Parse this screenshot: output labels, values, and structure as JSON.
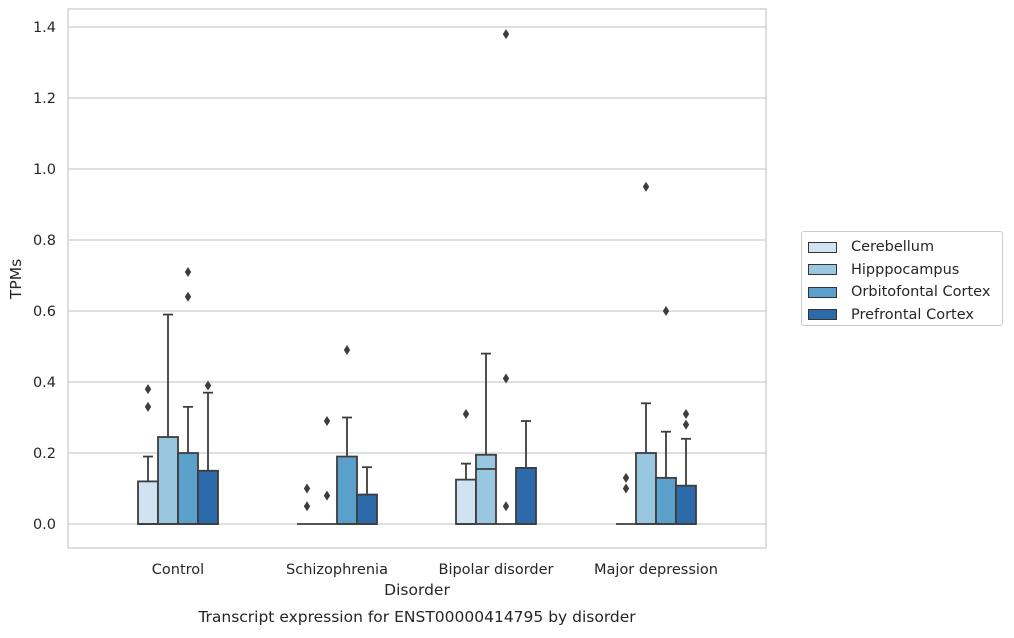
{
  "chart_data": {
    "type": "box",
    "title": "Transcript expression for ENST00000414795 by disorder",
    "xlabel": "Disorder",
    "ylabel": "TPMs",
    "ylim": [
      -0.065,
      1.45
    ],
    "yticks": [
      "0.0",
      "0.2",
      "0.4",
      "0.6",
      "0.8",
      "1.0",
      "1.2",
      "1.4"
    ],
    "grid": "horizontal",
    "legend_position": "right",
    "categories": [
      "Control",
      "Schizophrenia",
      "Bipolar disorder",
      "Major depression"
    ],
    "series": [
      {
        "name": "Cerebellum",
        "color": "#d1e2f2",
        "boxes": [
          {
            "q1": 0.0,
            "median": 0.0,
            "q3": 0.12,
            "whisker_low": 0.0,
            "whisker_high": 0.19,
            "outliers": [
              0.33,
              0.38
            ]
          },
          {
            "q1": 0.0,
            "median": 0.0,
            "q3": 0.0,
            "whisker_low": 0.0,
            "whisker_high": 0.0,
            "outliers": [
              0.05,
              0.1
            ]
          },
          {
            "q1": 0.0,
            "median": 0.0,
            "q3": 0.125,
            "whisker_low": 0.0,
            "whisker_high": 0.17,
            "outliers": [
              0.31
            ]
          },
          {
            "q1": 0.0,
            "median": 0.0,
            "q3": 0.0,
            "whisker_low": 0.0,
            "whisker_high": 0.0,
            "outliers": [
              0.1,
              0.13
            ]
          }
        ]
      },
      {
        "name": "Hipppocampus",
        "color": "#9ac7e0",
        "boxes": [
          {
            "q1": 0.0,
            "median": 0.0,
            "q3": 0.245,
            "whisker_low": 0.0,
            "whisker_high": 0.59,
            "outliers": []
          },
          {
            "q1": 0.0,
            "median": 0.0,
            "q3": 0.0,
            "whisker_low": 0.0,
            "whisker_high": 0.0,
            "outliers": [
              0.08,
              0.29
            ]
          },
          {
            "q1": 0.0,
            "median": 0.155,
            "q3": 0.195,
            "whisker_low": 0.0,
            "whisker_high": 0.48,
            "outliers": []
          },
          {
            "q1": 0.0,
            "median": 0.0,
            "q3": 0.2,
            "whisker_low": 0.0,
            "whisker_high": 0.34,
            "outliers": [
              0.95
            ]
          }
        ]
      },
      {
        "name": "Orbitofontal Cortex",
        "color": "#5b9fcb",
        "boxes": [
          {
            "q1": 0.0,
            "median": 0.0,
            "q3": 0.2,
            "whisker_low": 0.0,
            "whisker_high": 0.33,
            "outliers": [
              0.64,
              0.71
            ]
          },
          {
            "q1": 0.0,
            "median": 0.0,
            "q3": 0.19,
            "whisker_low": 0.0,
            "whisker_high": 0.3,
            "outliers": [
              0.49
            ]
          },
          {
            "q1": 0.0,
            "median": 0.0,
            "q3": 0.0,
            "whisker_low": 0.0,
            "whisker_high": 0.0,
            "outliers": [
              0.05,
              0.41,
              1.38
            ]
          },
          {
            "q1": 0.0,
            "median": 0.0,
            "q3": 0.13,
            "whisker_low": 0.0,
            "whisker_high": 0.26,
            "outliers": [
              0.6
            ]
          }
        ]
      },
      {
        "name": "Prefrontal Cortex",
        "color": "#2c6aa9",
        "boxes": [
          {
            "q1": 0.0,
            "median": 0.0,
            "q3": 0.15,
            "whisker_low": 0.0,
            "whisker_high": 0.37,
            "outliers": [
              0.39
            ]
          },
          {
            "q1": 0.0,
            "median": 0.0,
            "q3": 0.083,
            "whisker_low": 0.0,
            "whisker_high": 0.16,
            "outliers": []
          },
          {
            "q1": 0.0,
            "median": 0.0,
            "q3": 0.158,
            "whisker_low": 0.0,
            "whisker_high": 0.29,
            "outliers": []
          },
          {
            "q1": 0.0,
            "median": 0.0,
            "q3": 0.108,
            "whisker_low": 0.0,
            "whisker_high": 0.24,
            "outliers": [
              0.28,
              0.31
            ]
          }
        ]
      }
    ]
  }
}
